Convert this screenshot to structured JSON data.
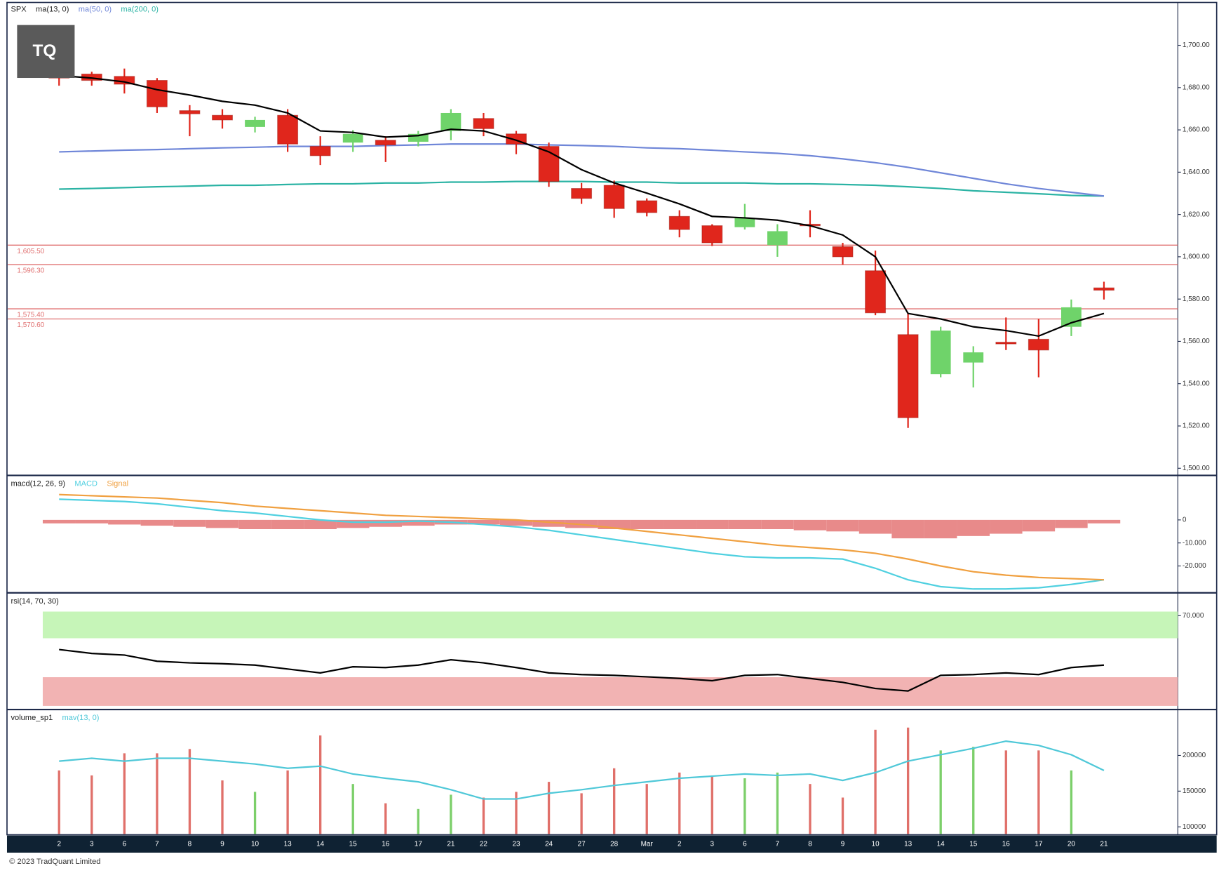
{
  "logo": "TQ",
  "footer": "© 2023 TradQuant Limited",
  "chart_data": [
    {
      "type": "candlestick",
      "title": "SPX",
      "categories": [
        "2",
        "3",
        "6",
        "7",
        "8",
        "9",
        "10",
        "13",
        "14",
        "15",
        "16",
        "17",
        "21",
        "22",
        "23",
        "24",
        "27",
        "28",
        "Mar",
        "2",
        "3",
        "6",
        "7",
        "8",
        "9",
        "10",
        "13",
        "14",
        "15",
        "16",
        "17",
        "20",
        "21"
      ],
      "open": [
        1686.4,
        1686.4,
        1685.3,
        1683.4,
        1669.1,
        1666.9,
        1661.4,
        1666.9,
        1652.2,
        1654.0,
        1655.1,
        1654.4,
        1659.5,
        1665.4,
        1658.1,
        1652.2,
        1632.3,
        1633.8,
        1626.5,
        1619.1,
        1614.7,
        1614.0,
        1605.5,
        1615.4,
        1604.8,
        1593.4,
        1563.2,
        1544.5,
        1550.0,
        1559.6,
        1561.0,
        1566.9,
        1585.3
      ],
      "high": [
        1689.0,
        1687.5,
        1689.0,
        1684.5,
        1671.7,
        1669.8,
        1666.2,
        1669.8,
        1657.0,
        1659.9,
        1657.0,
        1659.5,
        1669.8,
        1668.0,
        1659.5,
        1654.0,
        1634.9,
        1636.0,
        1627.6,
        1622.0,
        1615.4,
        1625.0,
        1615.4,
        1622.0,
        1606.6,
        1602.9,
        1573.5,
        1566.9,
        1557.7,
        1571.3,
        1570.6,
        1579.8,
        1588.2
      ],
      "low": [
        1680.9,
        1680.9,
        1677.2,
        1668.0,
        1657.0,
        1660.6,
        1658.8,
        1649.6,
        1643.4,
        1649.6,
        1644.8,
        1652.2,
        1655.1,
        1657.0,
        1648.5,
        1633.1,
        1625.0,
        1618.4,
        1619.1,
        1609.2,
        1605.1,
        1612.9,
        1600.0,
        1609.2,
        1596.3,
        1572.4,
        1519.1,
        1543.0,
        1538.2,
        1555.9,
        1543.0,
        1562.5,
        1579.8
      ],
      "close": [
        1684.5,
        1683.4,
        1681.6,
        1670.9,
        1667.6,
        1664.7,
        1664.7,
        1653.3,
        1647.8,
        1658.1,
        1652.9,
        1658.1,
        1668.0,
        1660.6,
        1653.3,
        1635.6,
        1627.6,
        1622.8,
        1620.9,
        1612.9,
        1606.6,
        1618.4,
        1612.1,
        1614.7,
        1600.0,
        1573.5,
        1523.9,
        1565.1,
        1554.8,
        1558.8,
        1555.9,
        1576.1,
        1584.2
      ],
      "up_color": "#6fd36a",
      "down_color": "#e0261c",
      "series": [
        {
          "name": "ma(13, 0)",
          "color": "#000000",
          "values": [
            1685.7,
            1684.5,
            1682.7,
            1679.0,
            1676.5,
            1673.5,
            1671.7,
            1668.0,
            1659.5,
            1658.8,
            1656.6,
            1657.3,
            1660.3,
            1659.5,
            1655.1,
            1649.6,
            1641.2,
            1634.9,
            1630.1,
            1625.0,
            1619.1,
            1618.4,
            1617.3,
            1614.7,
            1610.3,
            1600.0,
            1573.2,
            1570.6,
            1566.9,
            1565.1,
            1562.5,
            1568.8,
            1573.2
          ]
        },
        {
          "name": "ma(50, 0)",
          "color": "#6f86d8",
          "values": [
            1649.6,
            1650.0,
            1650.4,
            1650.7,
            1651.1,
            1651.5,
            1651.8,
            1652.2,
            1652.2,
            1652.2,
            1652.6,
            1652.9,
            1653.3,
            1653.3,
            1653.3,
            1652.9,
            1652.6,
            1652.2,
            1651.5,
            1651.1,
            1650.4,
            1649.6,
            1648.9,
            1647.8,
            1646.3,
            1644.5,
            1642.3,
            1639.7,
            1637.1,
            1634.5,
            1632.3,
            1630.5,
            1628.7
          ]
        },
        {
          "name": "ma(200, 0)",
          "color": "#2bb3a4",
          "values": [
            1632.0,
            1632.3,
            1632.7,
            1633.1,
            1633.4,
            1633.8,
            1633.8,
            1634.2,
            1634.5,
            1634.5,
            1634.9,
            1634.9,
            1635.3,
            1635.3,
            1635.6,
            1635.6,
            1635.6,
            1635.3,
            1635.3,
            1634.9,
            1634.9,
            1634.9,
            1634.5,
            1634.5,
            1634.2,
            1633.8,
            1633.1,
            1632.3,
            1631.2,
            1630.5,
            1629.8,
            1629.0,
            1628.7
          ]
        }
      ],
      "levels": [
        {
          "value": 1605.5,
          "label": "1,605.50"
        },
        {
          "value": 1596.3,
          "label": "1,596.30"
        },
        {
          "value": 1575.4,
          "label": "1,575.40"
        },
        {
          "value": 1570.6,
          "label": "1,570.60"
        }
      ],
      "level_color": "#e07070",
      "ylim": [
        1497,
        1714
      ],
      "yticks": [
        {
          "value": 1500,
          "label": "1,500.00"
        },
        {
          "value": 1520,
          "label": "1,520.00"
        },
        {
          "value": 1540,
          "label": "1,540.00"
        },
        {
          "value": 1560,
          "label": "1,560.00"
        },
        {
          "value": 1580,
          "label": "1,580.00"
        },
        {
          "value": 1600,
          "label": "1,600.00"
        },
        {
          "value": 1620,
          "label": "1,620.00"
        },
        {
          "value": 1640,
          "label": "1,640.00"
        },
        {
          "value": 1660,
          "label": "1,660.00"
        },
        {
          "value": 1680,
          "label": "1,680.00"
        },
        {
          "value": 1700,
          "label": "1,700.00"
        }
      ]
    },
    {
      "type": "macd",
      "title": "macd(12, 26, 9)",
      "series": [
        {
          "name": "MACD",
          "color": "#4fd0e0",
          "values": [
            9,
            8.5,
            8,
            7,
            5.5,
            4,
            3,
            1.5,
            0,
            -1,
            -1,
            -0.5,
            -1,
            -2,
            -3,
            -4.5,
            -6.5,
            -8.5,
            -10.5,
            -12.5,
            -14.5,
            -16,
            -16.5,
            -16.5,
            -17,
            -21,
            -26,
            -29,
            -30,
            -30,
            -29.5,
            -28,
            -26
          ]
        },
        {
          "name": "Signal",
          "color": "#f0a040",
          "values": [
            11,
            10.5,
            10,
            9.5,
            8.5,
            7.5,
            6,
            5,
            4,
            3,
            2,
            1.5,
            1,
            0.5,
            0,
            -1,
            -2,
            -3.5,
            -5,
            -6.5,
            -8,
            -9.5,
            -11,
            -12,
            -13,
            -14.5,
            -17,
            -20,
            -22.5,
            -24,
            -25,
            -25.5,
            -26
          ]
        }
      ],
      "histogram": {
        "color": "#e88a8a",
        "values": [
          -1.5,
          -1.5,
          -2,
          -2.5,
          -3,
          -3.5,
          -4,
          -4,
          -4,
          -3.5,
          -3,
          -2.5,
          -2,
          -2,
          -2.5,
          -3,
          -3.5,
          -4,
          -4,
          -4,
          -4,
          -4,
          -4,
          -4.5,
          -5,
          -6,
          -8,
          -8,
          -7,
          -6,
          -5,
          -3.5,
          -1.5
        ]
      },
      "ylim": [
        -31,
        19
      ],
      "yticks": [
        0,
        {
          "value": -10,
          "label": "-10.000"
        },
        {
          "value": -20,
          "label": "-20.000"
        }
      ]
    },
    {
      "type": "rsi",
      "title": "rsi(14, 70, 30)",
      "series": [
        {
          "color": "#000000",
          "values": [
            53.5,
            51.6,
            50.8,
            47.8,
            47.0,
            46.6,
            45.9,
            44.0,
            42.1,
            45.1,
            44.7,
            45.9,
            48.5,
            47.0,
            44.7,
            42.1,
            41.3,
            40.9,
            40.2,
            39.4,
            38.3,
            40.9,
            41.3,
            39.4,
            37.5,
            34.5,
            33.3,
            40.9,
            41.3,
            42.1,
            41.3,
            44.7,
            45.9
          ]
        }
      ],
      "bands": [
        {
          "range": [
            59,
            72
          ],
          "color": "#c6f5b8"
        },
        {
          "range": [
            26,
            40
          ],
          "color": "#f2b3b3"
        }
      ],
      "ylim": [
        25,
        80
      ],
      "yticks": [
        {
          "value": 70,
          "label": "70.000"
        }
      ]
    },
    {
      "type": "volume",
      "title": "volume_sp1",
      "values": [
        179000,
        172000,
        203000,
        203000,
        209000,
        165000,
        149000,
        179000,
        228000,
        160000,
        133000,
        125000,
        145000,
        141000,
        149000,
        163000,
        147000,
        182000,
        160000,
        176000,
        171000,
        168000,
        176000,
        160000,
        141000,
        236000,
        239000,
        207000,
        212000,
        207000,
        207000,
        179000,
        null
      ],
      "up_color": "#7ccf6a",
      "down_color": "#e0706a",
      "series": [
        {
          "name": "mav(13, 0)",
          "color": "#4fc8d8",
          "values": [
            192000,
            196000,
            192000,
            196000,
            196000,
            192000,
            188000,
            182000,
            185000,
            174000,
            168000,
            163000,
            152000,
            139000,
            139000,
            147000,
            152000,
            158000,
            163000,
            168000,
            171000,
            174000,
            172000,
            174000,
            165000,
            176000,
            192000,
            201000,
            210000,
            220000,
            214000,
            201000,
            179000
          ]
        }
      ],
      "ylim": [
        90000,
        261000
      ],
      "yticks": [
        100000,
        150000,
        200000
      ]
    }
  ]
}
